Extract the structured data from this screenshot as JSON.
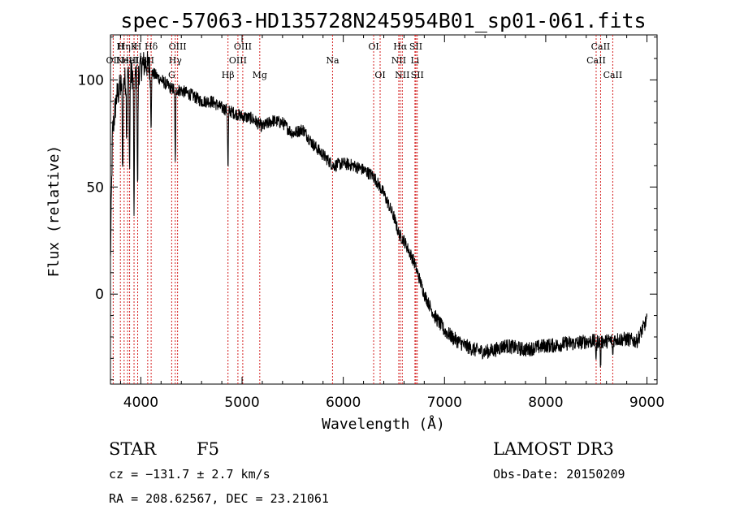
{
  "chart_data": {
    "type": "line",
    "title": "spec-57063-HD135728N245954B01_sp01-061.fits",
    "xlabel": "Wavelength (Å)",
    "ylabel": "Flux (relative)",
    "xlim": [
      3700,
      9100
    ],
    "ylim": [
      -42,
      121
    ],
    "xticks": [
      4000,
      5000,
      6000,
      7000,
      8000,
      9000
    ],
    "yticks": [
      0,
      50,
      100
    ],
    "spectrum_anchors": {
      "wavelength": [
        3700,
        3720,
        3760,
        3800,
        3850,
        3900,
        3950,
        4000,
        4050,
        4100,
        4200,
        4300,
        4400,
        4500,
        4600,
        4700,
        4800,
        4900,
        5000,
        5100,
        5200,
        5300,
        5400,
        5500,
        5600,
        5700,
        5800,
        5900,
        6000,
        6100,
        6200,
        6300,
        6400,
        6500,
        6550,
        6600,
        6700,
        6800,
        6900,
        7000,
        7100,
        7200,
        7300,
        7400,
        7500,
        7600,
        7700,
        7800,
        7900,
        8000,
        8100,
        8200,
        8300,
        8400,
        8500,
        8600,
        8700,
        8800,
        8900,
        9000
      ],
      "flux": [
        15,
        75,
        92,
        97,
        100,
        103,
        101,
        106,
        108,
        104,
        100,
        96,
        95,
        93,
        90,
        90,
        87,
        85,
        83,
        82,
        78,
        81,
        80,
        75,
        77,
        70,
        65,
        60,
        61,
        60,
        58,
        55,
        47,
        36,
        28,
        25,
        15,
        0,
        -10,
        -17,
        -21,
        -24,
        -26,
        -27,
        -26,
        -24,
        -25,
        -26,
        -25,
        -24,
        -24,
        -23,
        -23,
        -22,
        -22,
        -22,
        -21,
        -21,
        -22,
        -12
      ]
    },
    "absorption_features": [
      {
        "wavelength": 3820,
        "depth": 40
      },
      {
        "wavelength": 3860,
        "depth": 25
      },
      {
        "wavelength": 3889,
        "depth": 45
      },
      {
        "wavelength": 3933,
        "depth": 70
      },
      {
        "wavelength": 3968,
        "depth": 55
      },
      {
        "wavelength": 4101,
        "depth": 25
      },
      {
        "wavelength": 4340,
        "depth": 35
      },
      {
        "wavelength": 4861,
        "depth": 28
      },
      {
        "wavelength": 8498,
        "depth": 8
      },
      {
        "wavelength": 8542,
        "depth": 12
      },
      {
        "wavelength": 8662,
        "depth": 8
      }
    ],
    "spectral_lines": [
      {
        "wavelength": 3727,
        "label": "OII",
        "row": 2
      },
      {
        "wavelength": 3798,
        "label": "H",
        "row": 1
      },
      {
        "wavelength": 3835,
        "label": "Hη",
        "row": 1
      },
      {
        "wavelength": 3869,
        "label": "NeIII",
        "row": 2
      },
      {
        "wavelength": 3889,
        "label": "HeI",
        "row": 2
      },
      {
        "wavelength": 3933,
        "label": "K",
        "row": 1
      },
      {
        "wavelength": 3969,
        "label": "H",
        "row": 1
      },
      {
        "wavelength": 4068,
        "label": "SII",
        "row": 2
      },
      {
        "wavelength": 4102,
        "label": "Hδ",
        "row": 1
      },
      {
        "wavelength": 4305,
        "label": "G",
        "row": 3
      },
      {
        "wavelength": 4340,
        "label": "Hγ",
        "row": 2
      },
      {
        "wavelength": 4363,
        "label": "OIII",
        "row": 1
      },
      {
        "wavelength": 4861,
        "label": "Hβ",
        "row": 3
      },
      {
        "wavelength": 4959,
        "label": "OIII",
        "row": 2
      },
      {
        "wavelength": 5007,
        "label": "OIII",
        "row": 1
      },
      {
        "wavelength": 5175,
        "label": "Mg",
        "row": 3
      },
      {
        "wavelength": 5894,
        "label": "Na",
        "row": 2
      },
      {
        "wavelength": 6300,
        "label": "OI",
        "row": 1
      },
      {
        "wavelength": 6364,
        "label": "OI",
        "row": 3
      },
      {
        "wavelength": 6548,
        "label": "NII",
        "row": 2
      },
      {
        "wavelength": 6563,
        "label": "Hα",
        "row": 1
      },
      {
        "wavelength": 6583,
        "label": "NII",
        "row": 3
      },
      {
        "wavelength": 6708,
        "label": "Li",
        "row": 2
      },
      {
        "wavelength": 6717,
        "label": "SII",
        "row": 1
      },
      {
        "wavelength": 6731,
        "label": "SII",
        "row": 3
      },
      {
        "wavelength": 8498,
        "label": "CaII",
        "row": 2
      },
      {
        "wavelength": 8542,
        "label": "CaII",
        "row": 1
      },
      {
        "wavelength": 8662,
        "label": "CaII",
        "row": 3
      }
    ]
  },
  "info": {
    "object_class": "STAR",
    "subclass": "F5",
    "survey": "LAMOST DR3",
    "cz": "cz = −131.7 ± 2.7 km/s",
    "obs_date": "Obs-Date: 20150209",
    "coords": "RA = 208.62567, DEC =  23.21061"
  },
  "colors": {
    "line_marker": "#d42020",
    "spectrum": "#000000"
  }
}
